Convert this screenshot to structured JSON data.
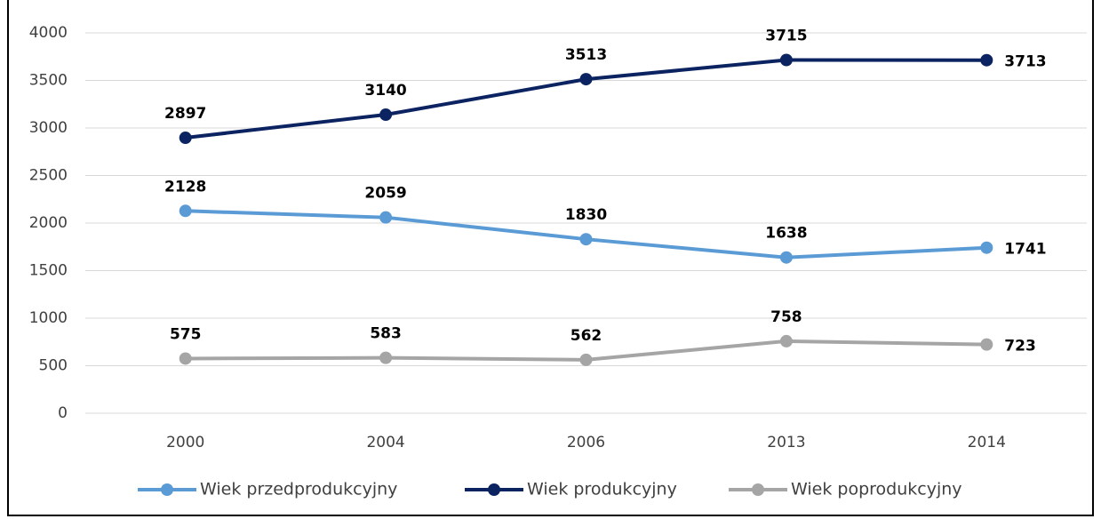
{
  "chart_data": {
    "type": "line",
    "categories": [
      "2000",
      "2004",
      "2006",
      "2013",
      "2014"
    ],
    "series": [
      {
        "name": "Wiek przedprodukcyjny",
        "color": "#5b9bd5",
        "values": [
          2128,
          2059,
          1830,
          1638,
          1741
        ]
      },
      {
        "name": "Wiek produkcyjny",
        "color": "#0b2461",
        "values": [
          2897,
          3140,
          3513,
          3715,
          3713
        ]
      },
      {
        "name": "Wiek poprodukcyjny",
        "color": "#a5a5a5",
        "values": [
          575,
          583,
          562,
          758,
          723
        ]
      }
    ],
    "ylim": [
      0,
      4000
    ],
    "yticks": [
      0,
      500,
      1000,
      1500,
      2000,
      2500,
      3000,
      3500,
      4000
    ],
    "grid": true,
    "legend": "bottom"
  }
}
